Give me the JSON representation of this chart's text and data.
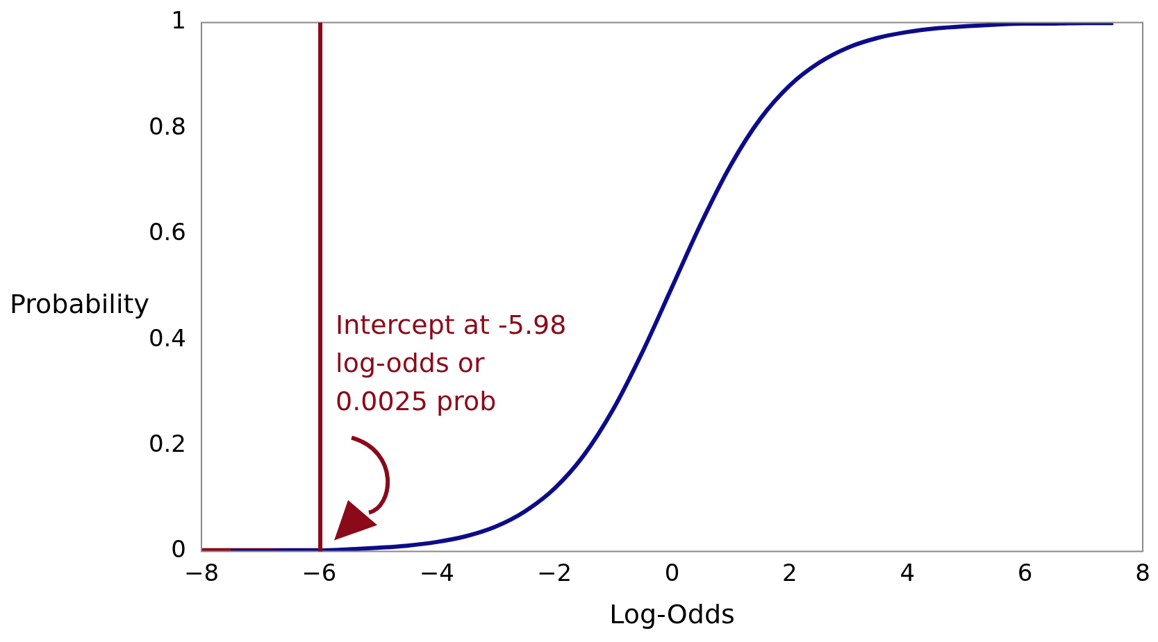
{
  "chart_data": {
    "type": "line",
    "xlabel": "Log-Odds",
    "ylabel": "Probability",
    "xlim": [
      -8,
      8
    ],
    "ylim": [
      0,
      1
    ],
    "xticks": [
      {
        "value": -8,
        "label": "−8"
      },
      {
        "value": -6,
        "label": "−6"
      },
      {
        "value": -4,
        "label": "−4"
      },
      {
        "value": -2,
        "label": "−2"
      },
      0,
      2,
      4,
      6,
      8
    ],
    "yticks": [
      0,
      0.2,
      0.4,
      0.6,
      0.8,
      1
    ],
    "grid": false,
    "legend": false,
    "marker": "none",
    "line_style": "solid",
    "series": [
      {
        "color": "#0c0c8a",
        "x": [
          -7.5,
          -7,
          -6.5,
          -6,
          -5.5,
          -5,
          -4.5,
          -4,
          -3.5,
          -3,
          -2.5,
          -2,
          -1.5,
          -1,
          -0.5,
          0,
          0.5,
          1,
          1.5,
          2,
          2.5,
          3,
          3.5,
          4,
          4.5,
          5,
          5.5,
          6,
          6.5,
          7,
          7.5
        ],
        "values": [
          0.001,
          0.001,
          0.002,
          0.002,
          0.004,
          0.007,
          0.011,
          0.018,
          0.029,
          0.047,
          0.076,
          0.119,
          0.182,
          0.269,
          0.378,
          0.5,
          0.622,
          0.731,
          0.818,
          0.881,
          0.924,
          0.953,
          0.971,
          0.982,
          0.989,
          0.993,
          0.996,
          0.998,
          0.998,
          0.999,
          0.999
        ]
      },
      {
        "color": "#8b0a1a",
        "x": [
          -8,
          -5.98
        ],
        "values": [
          0.0025,
          0.0025
        ]
      }
    ],
    "ref_lines": [
      {
        "axis": "x",
        "value": -5.98,
        "color": "#8b0a1a"
      }
    ],
    "annotations": [
      "Intercept at -5.98\nlog-odds or\n0.0025 prob"
    ]
  }
}
